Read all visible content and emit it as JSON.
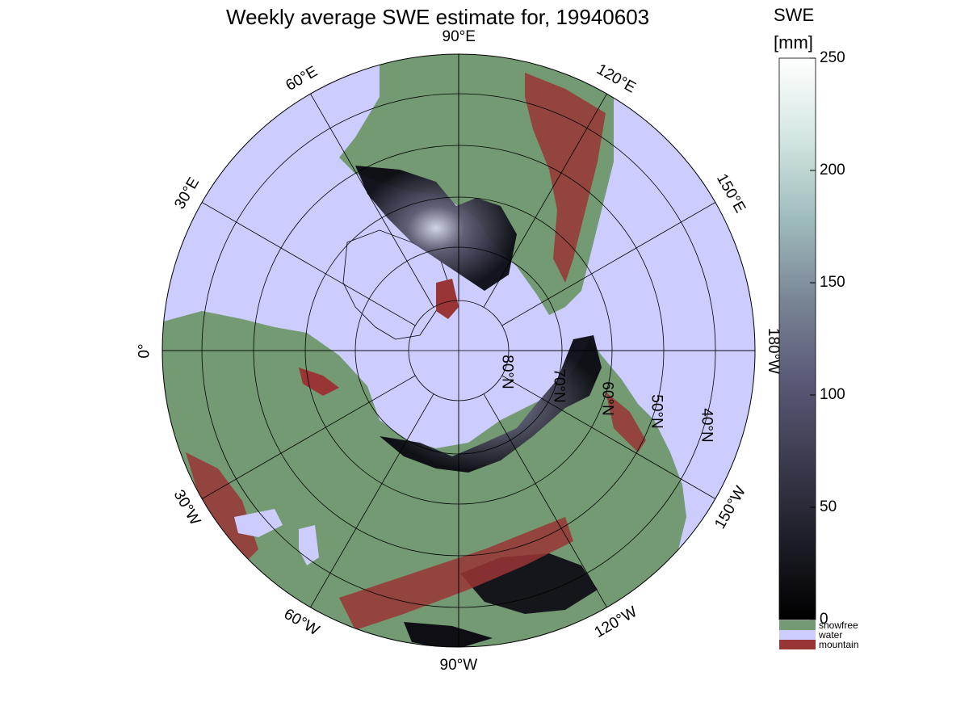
{
  "title": "Weekly average SWE estimate for, 19940603",
  "longitude_labels": [
    {
      "text": "90°W",
      "lon": -90
    },
    {
      "text": "120°W",
      "lon": -120
    },
    {
      "text": "60°W",
      "lon": -60
    },
    {
      "text": "150°W",
      "lon": -150
    },
    {
      "text": "30°W",
      "lon": -30
    },
    {
      "text": "0°",
      "lon": 0
    },
    {
      "text": "180°W",
      "lon": 180
    },
    {
      "text": "30°E",
      "lon": 30
    },
    {
      "text": "150°E",
      "lon": 150
    },
    {
      "text": "60°E",
      "lon": 60
    },
    {
      "text": "120°E",
      "lon": 120
    },
    {
      "text": "90°E",
      "lon": 90
    }
  ],
  "latitude_labels": [
    "80°N",
    "70°N",
    "60°N",
    "50°N",
    "40°N"
  ],
  "colorbar": {
    "label": "SWE",
    "unit": "[mm]",
    "min": 0,
    "max": 250,
    "ticks": [
      "250",
      "200",
      "150",
      "100",
      "50",
      "0"
    ],
    "gradient": [
      "#000000",
      "#1e1e28",
      "#3c3c50",
      "#5a5a78",
      "#7a8696",
      "#9fbcbc",
      "#d3e6e2",
      "#ffffff"
    ]
  },
  "legend": [
    {
      "label": "snowfree",
      "color": "#739a72"
    },
    {
      "label": "water",
      "color": "#ccccff"
    },
    {
      "label": "mountain",
      "color": "#9a3535"
    }
  ]
}
